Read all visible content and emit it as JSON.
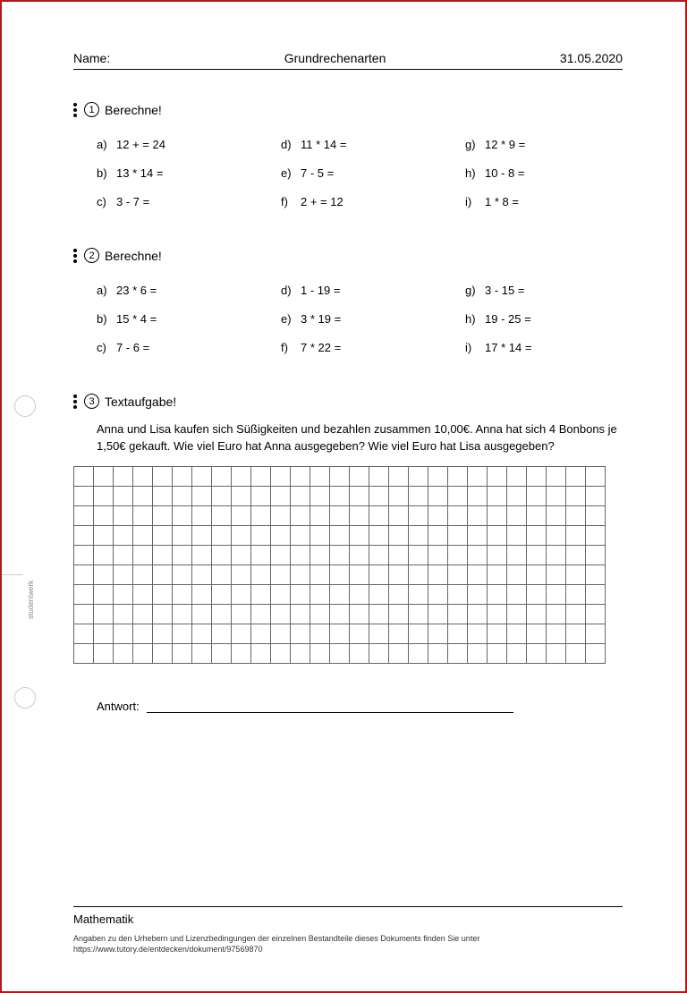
{
  "header": {
    "name_label": "Name:",
    "title": "Grundrechenarten",
    "date": "31.05.2020"
  },
  "section1": {
    "number": "1",
    "title": "Berechne!",
    "items": [
      {
        "label": "a)",
        "text": "12 +        = 24"
      },
      {
        "label": "d)",
        "text": "11 * 14 ="
      },
      {
        "label": "g)",
        "text": "12 * 9 ="
      },
      {
        "label": "b)",
        "text": "13 * 14 ="
      },
      {
        "label": "e)",
        "text": "7 - 5 ="
      },
      {
        "label": "h)",
        "text": "10 - 8 ="
      },
      {
        "label": "c)",
        "text": "3 - 7 ="
      },
      {
        "label": "f)",
        "text": "2 +        = 12"
      },
      {
        "label": "i)",
        "text": "1 * 8 ="
      }
    ]
  },
  "section2": {
    "number": "2",
    "title": "Berechne!",
    "items": [
      {
        "label": "a)",
        "text": "23 * 6 ="
      },
      {
        "label": "d)",
        "text": "1 - 19 ="
      },
      {
        "label": "g)",
        "text": "3 - 15 ="
      },
      {
        "label": "b)",
        "text": "15 * 4 ="
      },
      {
        "label": "e)",
        "text": "3 * 19 ="
      },
      {
        "label": "h)",
        "text": "19 - 25 ="
      },
      {
        "label": "c)",
        "text": "7 - 6 ="
      },
      {
        "label": "f)",
        "text": "7 * 22 ="
      },
      {
        "label": "i)",
        "text": "17 * 14 ="
      }
    ]
  },
  "section3": {
    "number": "3",
    "title": "Textaufgabe!",
    "body": "Anna und Lisa kaufen sich Süßigkeiten und bezahlen zusammen 10,00€. Anna hat sich 4 Bonbons je 1,50€ gekauft. Wie viel Euro hat Anna ausgegeben? Wie viel Euro hat Lisa ausgegeben?",
    "grid_cols": 27,
    "grid_rows": 10
  },
  "antwort_label": "Antwort:",
  "footer": {
    "subject": "Mathematik",
    "note_line1": "Angaben zu den Urhebern und Lizenzbedingungen der einzelnen Bestandteile dieses Dokuments finden Sie unter",
    "note_line2": "https://www.tutory.de/entdecken/dokument/97569870"
  },
  "side_label": "studentwerk"
}
